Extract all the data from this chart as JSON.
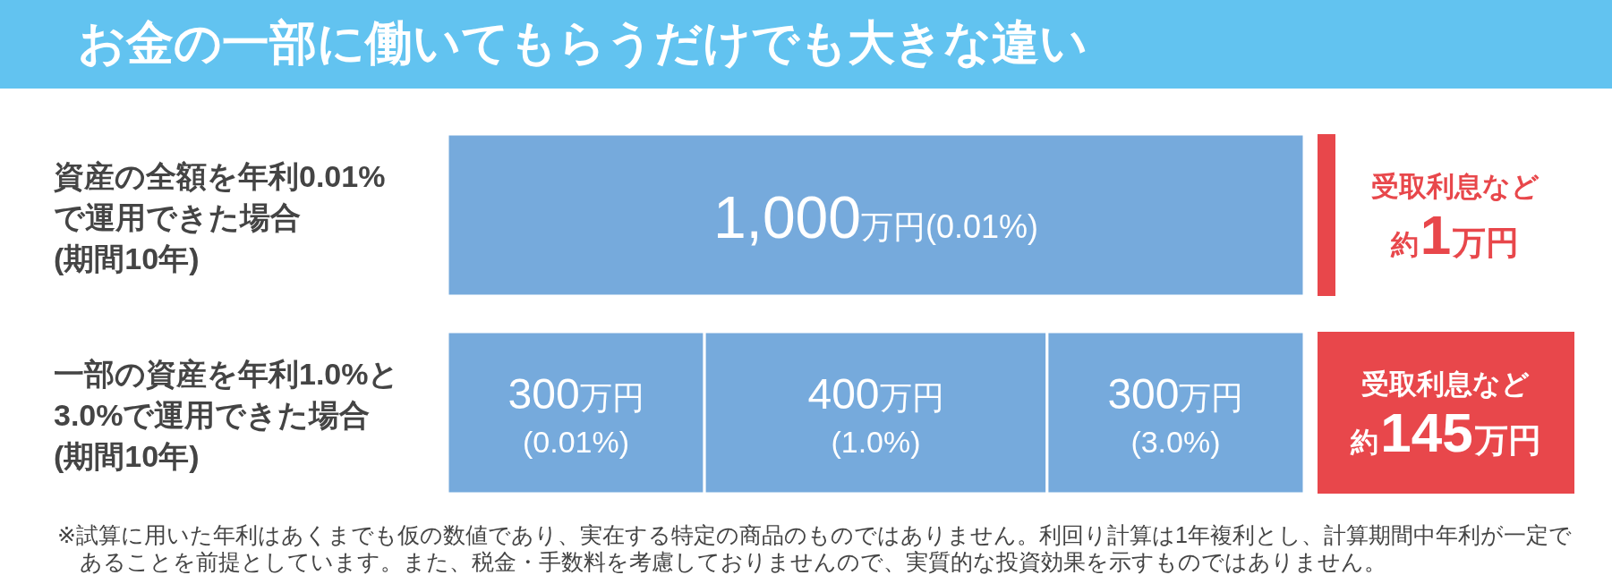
{
  "chart_data": {
    "type": "bar",
    "title": "お金の一部に働いてもらうだけでも大きな違い",
    "orientation": "horizontal",
    "stacked": true,
    "categories": [
      "資産の全額を年利0.01%\nで運用できた場合\n(期間10年)",
      "一部の資産を年利1.0%と\n3.0%で運用できた場合\n(期間10年)"
    ],
    "series": [
      {
        "color": "#76aadc",
        "values": [
          1000,
          300
        ],
        "value_labels": [
          "1,000万円(0.01%)",
          "300万円\n(0.01%)"
        ]
      },
      {
        "color": "#76aadc",
        "values": [
          null,
          400
        ],
        "value_labels": [
          null,
          "400万円\n(1.0%)"
        ]
      },
      {
        "color": "#76aadc",
        "values": [
          null,
          300
        ],
        "value_labels": [
          null,
          "300万円\n(3.0%)"
        ]
      }
    ],
    "annotations": [
      "受取利息など約1万円",
      "受取利息など約145万円",
      "※試算に用いた年利はあくまでも仮の数値であり、実在する特定の商品のものではありません。利回り計算は1年複利とし、計算期間中年利が一定であることを前提としています。また、税金・手数料を考慮しておりませんので、実質的な投資効果を示すものではありません。"
    ]
  }
}
